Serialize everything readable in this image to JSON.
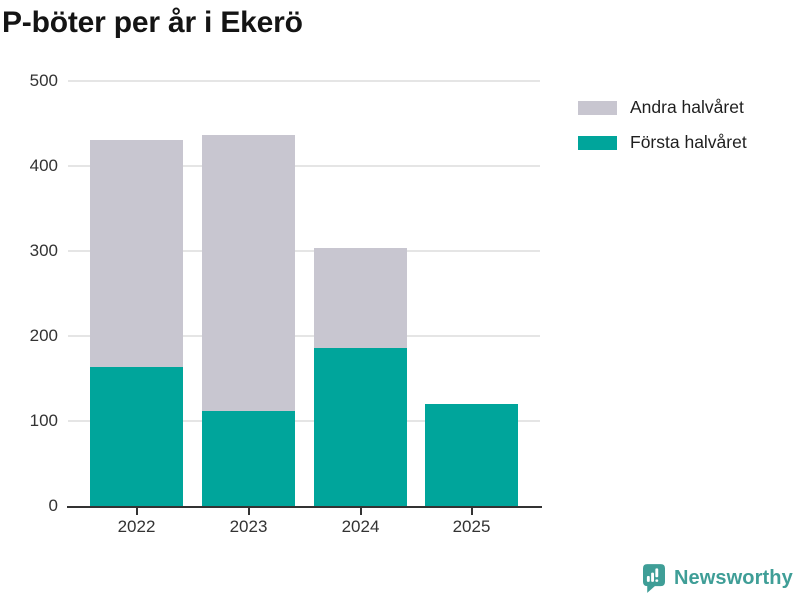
{
  "title": "P-böter per år i Ekerö",
  "chart_data": {
    "type": "bar",
    "stacked": true,
    "title": "P-böter per år i Ekerö",
    "categories": [
      "2022",
      "2023",
      "2024",
      "2025"
    ],
    "series": [
      {
        "name": "Första halvåret",
        "color": "#00a59b",
        "values": [
          163,
          112,
          186,
          120
        ]
      },
      {
        "name": "Andra halvåret",
        "color": "#c8c6d0",
        "values": [
          268,
          325,
          117,
          0
        ]
      }
    ],
    "yticks": [
      0,
      100,
      200,
      300,
      400,
      500
    ],
    "ylim": [
      0,
      500
    ],
    "xlabel": "",
    "ylabel": "",
    "grid": true,
    "legend_position": "right"
  },
  "legend": {
    "items": [
      {
        "label": "Andra halvåret",
        "color": "#c8c6d0"
      },
      {
        "label": "Första halvåret",
        "color": "#00a59b"
      }
    ]
  },
  "branding": {
    "logo_text": "Newsworthy",
    "logo_icon": "newsworthy-speech-bubble-bar-chart-icon",
    "color": "#3f9e97"
  },
  "colors": {
    "first_half": "#00a59b",
    "second_half": "#c8c6d0",
    "grid": "#e5e5e5",
    "axis": "#333333",
    "tick_text": "#333333",
    "title_text": "#141414"
  }
}
